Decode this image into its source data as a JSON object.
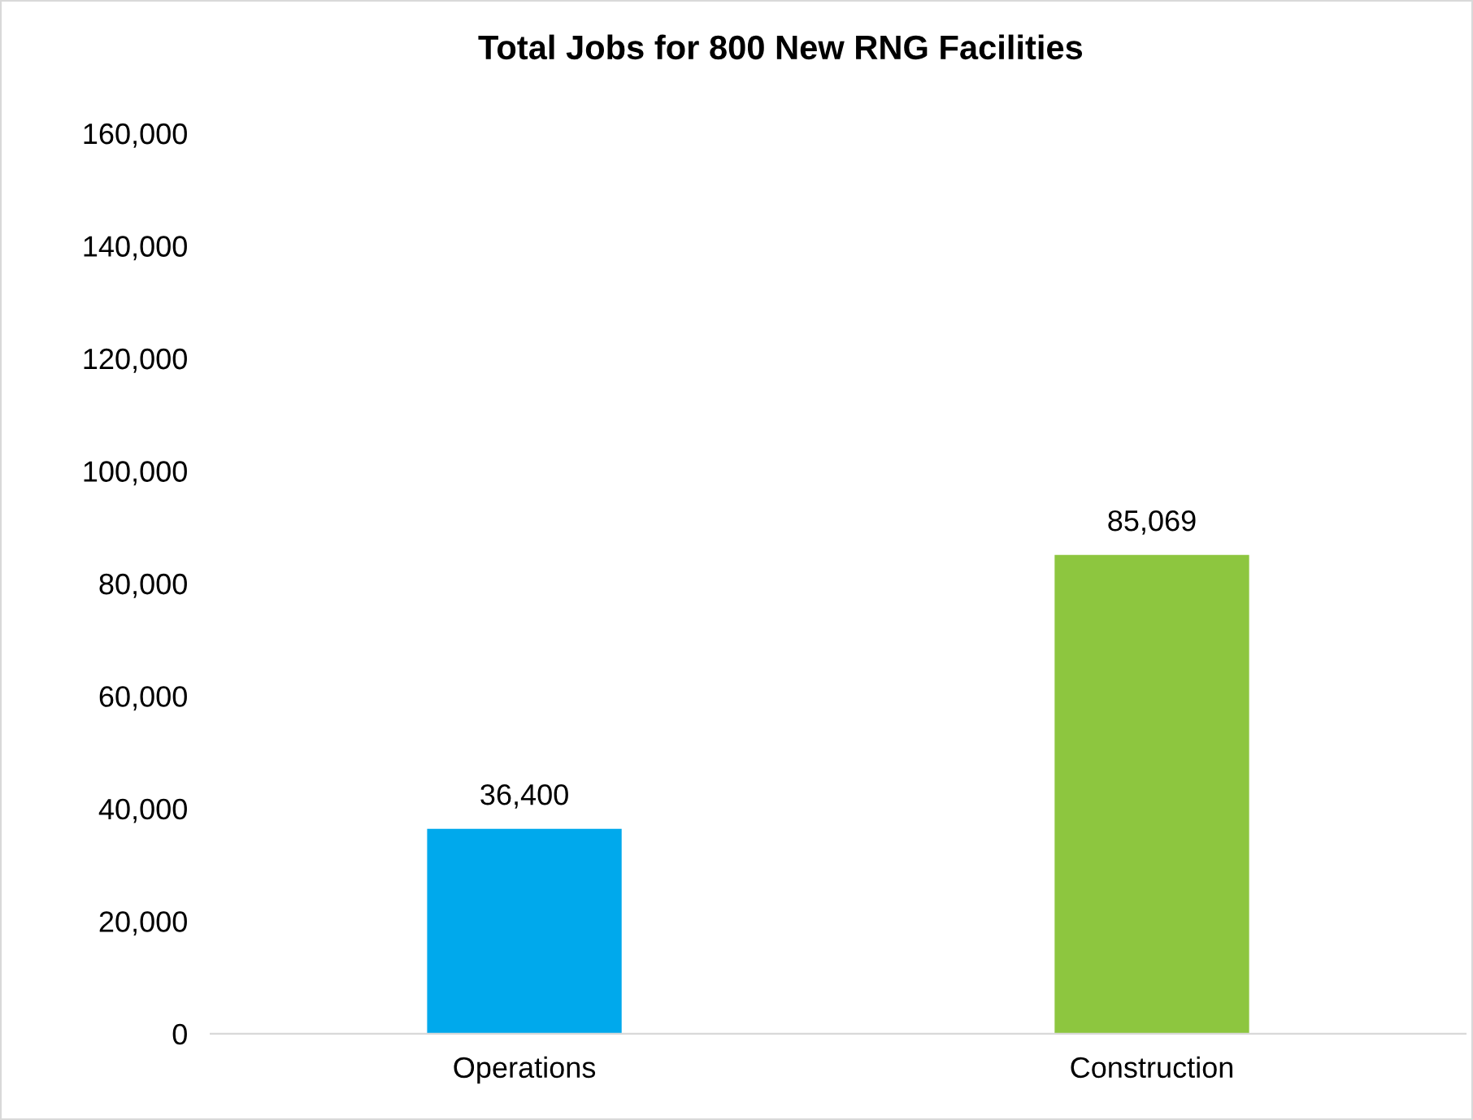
{
  "chart_data": {
    "type": "bar",
    "title": "Total Jobs for 800 New RNG Facilities",
    "categories": [
      "Operations",
      "Construction"
    ],
    "values": [
      36400,
      85069
    ],
    "colors": [
      "#00a9ec",
      "#8dc63f"
    ],
    "ylim": [
      0,
      160000
    ],
    "yticks": [
      0,
      {
        "value": 20000,
        "label": "20,000"
      },
      {
        "value": 40000,
        "label": "40,000"
      },
      {
        "value": 60000,
        "label": "60,000"
      },
      {
        "value": 80000,
        "label": "80,000"
      },
      {
        "value": 100000,
        "label": "100,000"
      },
      {
        "value": 120000,
        "label": "120,000"
      },
      {
        "value": 140000,
        "label": "140,000"
      },
      {
        "value": 160000,
        "label": "160,000"
      }
    ],
    "value_labels": [
      "36,400",
      "85,069"
    ],
    "grid": false,
    "legend": false
  }
}
